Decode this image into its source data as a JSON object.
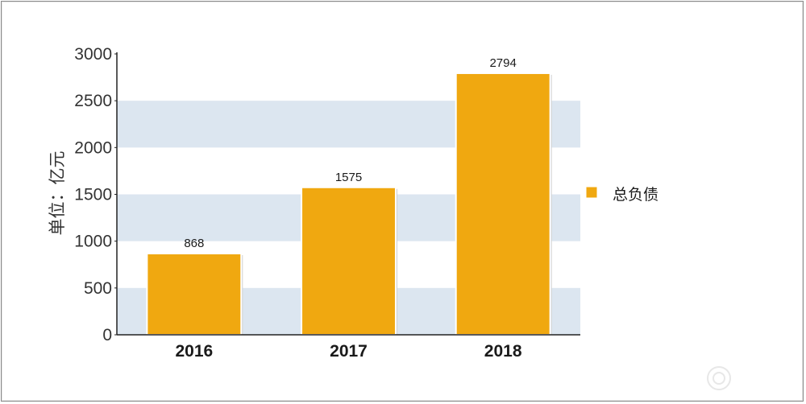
{
  "chart_data": {
    "type": "bar",
    "categories": [
      "2016",
      "2017",
      "2018"
    ],
    "series": [
      {
        "name": "总负债",
        "values": [
          868,
          1575,
          2794
        ]
      }
    ],
    "ylabel": "单位：亿元",
    "ylim": [
      0,
      3000
    ],
    "yticks": [
      0,
      500,
      1000,
      1500,
      2000,
      2500,
      3000
    ],
    "grid": "alternating horizontal bands",
    "legend": "right",
    "colors": {
      "bar": "#F0A810",
      "band": "#DCE6F0",
      "axis": "#222222"
    }
  }
}
